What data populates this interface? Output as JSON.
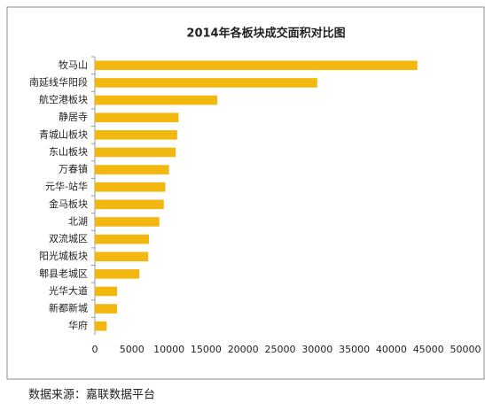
{
  "chart_data": {
    "type": "bar",
    "orientation": "horizontal",
    "title": "2014年各板块成交面积对比图",
    "categories": [
      "牧马山",
      "南延线华阳段",
      "航空港板块",
      "静居寺",
      "青城山板块",
      "东山板块",
      "万春镇",
      "元华-站华",
      "金马板块",
      "北湖",
      "双流城区",
      "阳光城板块",
      "郫县老城区",
      "光华大道",
      "新都新城",
      "华府"
    ],
    "values": [
      43500,
      30000,
      16500,
      11300,
      11100,
      10900,
      10000,
      9500,
      9300,
      8700,
      7300,
      7200,
      6000,
      3000,
      3000,
      1600
    ],
    "color": "#f2b80f",
    "xlim": [
      0,
      50000
    ],
    "xticks": [
      0,
      5000,
      10000,
      15000,
      20000,
      25000,
      30000,
      35000,
      40000,
      45000,
      50000
    ],
    "grid": false,
    "note": "数据来源：嘉联数据平台"
  }
}
